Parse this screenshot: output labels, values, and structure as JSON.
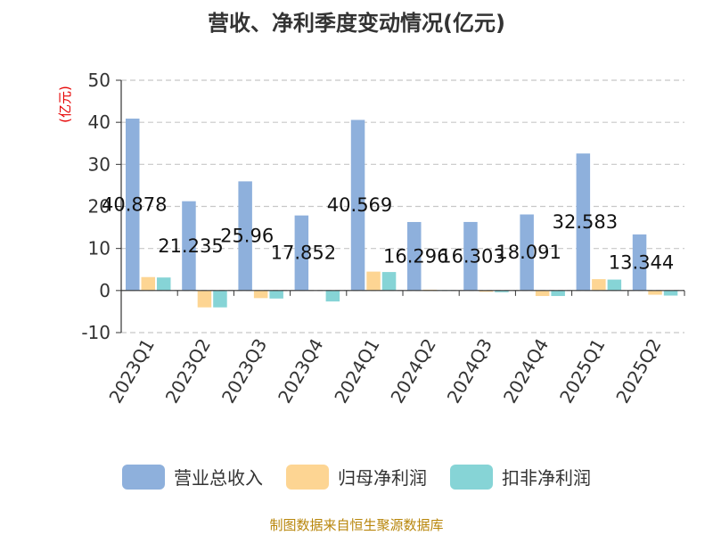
{
  "chart_data": {
    "type": "bar",
    "title": "营收、净利季度变动情况(亿元)",
    "ylabel": "(亿元)",
    "xlabel": "",
    "ylim": [
      -10,
      50
    ],
    "yticks": [
      50,
      40,
      30,
      20,
      10,
      0,
      -10
    ],
    "categories": [
      "2023Q1",
      "2023Q2",
      "2023Q3",
      "2023Q4",
      "2024Q1",
      "2024Q2",
      "2024Q3",
      "2024Q4",
      "2025Q1",
      "2025Q2"
    ],
    "series": [
      {
        "name": "营业总收入",
        "color": "#8eb0dc",
        "values": [
          40.878,
          21.235,
          25.96,
          17.852,
          40.569,
          16.296,
          16.303,
          18.091,
          32.583,
          13.344
        ],
        "labels": [
          "40.878",
          "21.235",
          "25.96",
          "17.852",
          "40.569",
          "16.296",
          "16.303",
          "18.091",
          "32.583",
          "13.344"
        ]
      },
      {
        "name": "归母净利润",
        "color": "#fdd593",
        "values": [
          3.2,
          -4.0,
          -1.8,
          0.0,
          4.5,
          0.2,
          -0.3,
          -1.3,
          2.7,
          -1.0
        ]
      },
      {
        "name": "扣非净利润",
        "color": "#86d4d6",
        "values": [
          3.1,
          -4.0,
          -1.9,
          -2.6,
          4.4,
          0.1,
          -0.4,
          -1.3,
          2.6,
          -1.2
        ]
      }
    ],
    "grid": true,
    "legend": "bottom"
  },
  "footer": {
    "source": "制图数据来自恒生聚源数据库"
  }
}
